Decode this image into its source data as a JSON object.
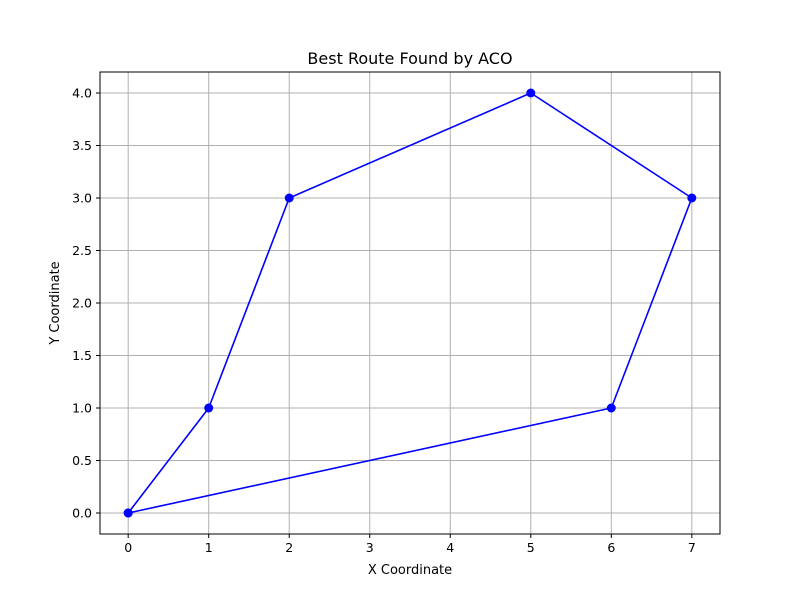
{
  "chart_data": {
    "type": "line",
    "title": "Best Route Found by ACO",
    "xlabel": "X Coordinate",
    "ylabel": "Y Coordinate",
    "xlim": [
      -0.35,
      7.35
    ],
    "ylim": [
      -0.2,
      4.2
    ],
    "xticks": [
      0,
      1,
      2,
      3,
      4,
      5,
      6,
      7
    ],
    "yticks": [
      0.0,
      0.5,
      1.0,
      1.5,
      2.0,
      2.5,
      3.0,
      3.5,
      4.0
    ],
    "xtick_labels": [
      "0",
      "1",
      "2",
      "3",
      "4",
      "5",
      "6",
      "7"
    ],
    "ytick_labels": [
      "0.0",
      "0.5",
      "1.0",
      "1.5",
      "2.0",
      "2.5",
      "3.0",
      "3.5",
      "4.0"
    ],
    "grid": true,
    "series": [
      {
        "color": "#0000ff",
        "marker": "circle",
        "x": [
          0,
          1,
          2,
          5,
          7,
          6,
          0
        ],
        "y": [
          0,
          1,
          3,
          4,
          3,
          1,
          0
        ]
      }
    ]
  }
}
